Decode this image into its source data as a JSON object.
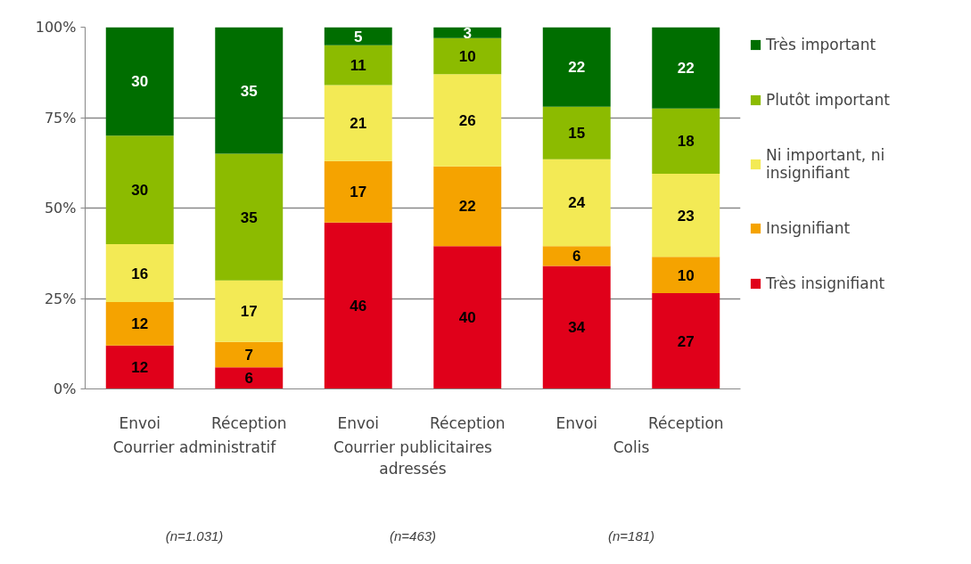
{
  "chart_data": {
    "type": "bar",
    "stacked": true,
    "categories": [
      "Envoi",
      "Réception",
      "Envoi",
      "Réception",
      "Envoi",
      "Réception"
    ],
    "series": [
      {
        "name": "Très insignifiant",
        "color": "#e0001a",
        "values": [
          12,
          6,
          46,
          39.5,
          34,
          26.5
        ],
        "value_labels": [
          "12",
          "6",
          "46",
          "40",
          "34",
          "27"
        ]
      },
      {
        "name": "Insignifiant",
        "color": "#f5a300",
        "values": [
          12,
          7,
          17,
          22,
          5.5,
          10
        ],
        "value_labels": [
          "12",
          "7",
          "17",
          "22",
          "6",
          "10"
        ]
      },
      {
        "name": "Ni important, ni insignifiant",
        "color": "#f3ea55",
        "values": [
          16,
          17,
          21,
          25.5,
          24,
          23
        ],
        "value_labels": [
          "16",
          "17",
          "21",
          "26",
          "24",
          "23"
        ]
      },
      {
        "name": "Plutôt important",
        "color": "#8cbb00",
        "values": [
          30,
          35,
          11,
          10,
          14.5,
          18
        ],
        "value_labels": [
          "30",
          "35",
          "11",
          "10",
          "15",
          "18"
        ]
      },
      {
        "name": "Très important",
        "color": "#006e00",
        "values": [
          30,
          35,
          5,
          3,
          22,
          22.5
        ],
        "value_labels": [
          "30",
          "35",
          "5",
          "3",
          "22",
          "22"
        ]
      }
    ],
    "ylim": [
      0,
      100
    ],
    "yticks": [
      {
        "value": 0,
        "label": "0%"
      },
      {
        "value": 25,
        "label": "25%"
      },
      {
        "value": 50,
        "label": "50%"
      },
      {
        "value": 75,
        "label": "75%"
      },
      {
        "value": 100,
        "label": "100%"
      }
    ],
    "grid": "y",
    "legend": "right",
    "annotations": [
      "Courrier administratif",
      "Courrier publicitaires adressés",
      "Colis",
      "(n=1.031)",
      "(n=463)",
      "(n=181)"
    ]
  }
}
